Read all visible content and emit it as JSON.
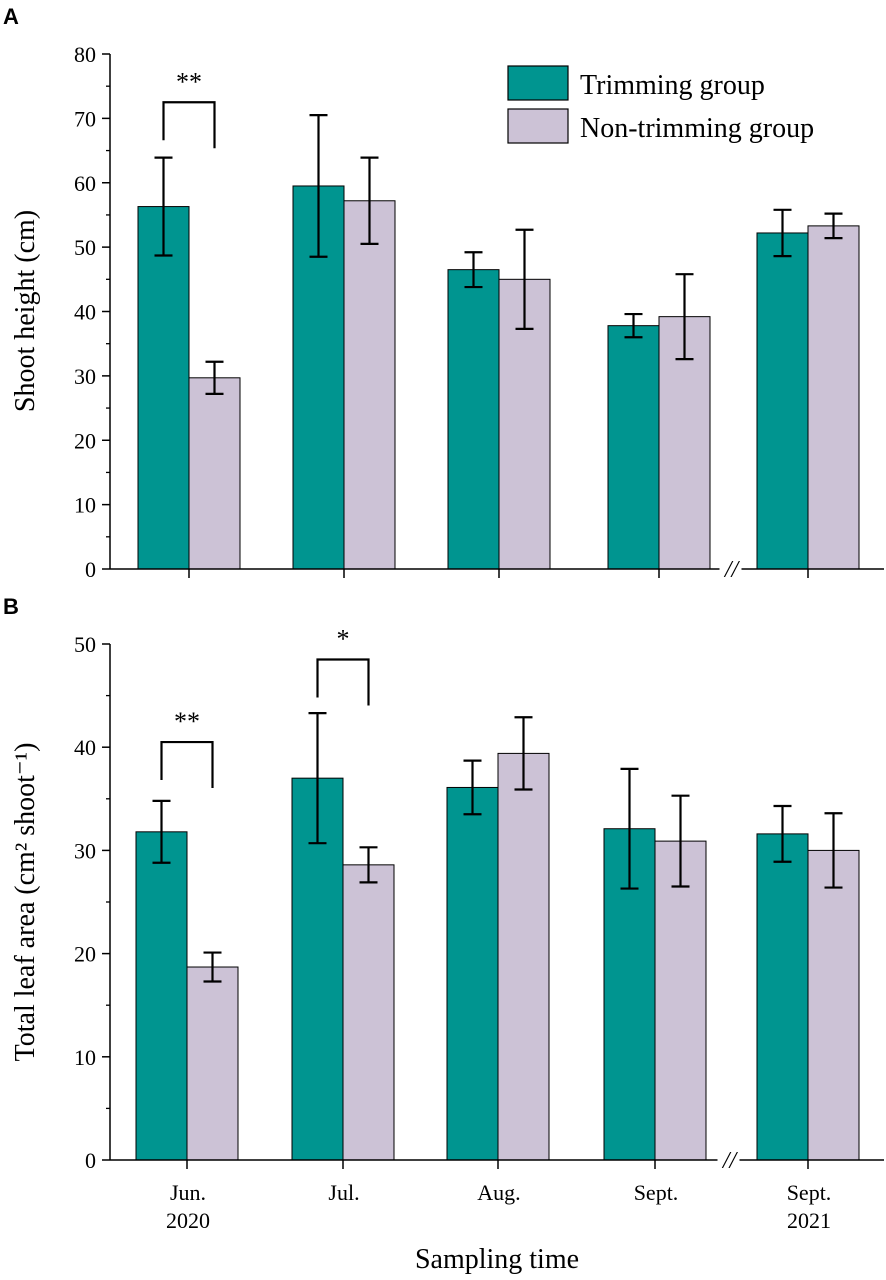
{
  "colors": {
    "trimming": "#009590",
    "non_trimming": "#ccc2d6",
    "stroke": "#000000"
  },
  "categories_top": [
    "Jun. 2020",
    "Jul.",
    "Aug.",
    "Sept.",
    "Sept. 2021"
  ],
  "category_labels": [
    {
      "line1": "Jun.",
      "line2": "2020"
    },
    {
      "line1": "Jul.",
      "line2": ""
    },
    {
      "line1": "Aug.",
      "line2": ""
    },
    {
      "line1": "Sept.",
      "line2": ""
    },
    {
      "line1": "Sept.",
      "line2": "2021"
    }
  ],
  "x_axis_title": "Sampling time",
  "axis_break_mark": "//",
  "chart_data": [
    {
      "panel": "A",
      "type": "bar",
      "ylabel": "Shoot height (cm)",
      "ylim": [
        0,
        80
      ],
      "yticks": [
        0,
        10,
        20,
        30,
        40,
        50,
        60,
        70,
        80
      ],
      "axis_break_between": [
        3,
        4
      ],
      "legend": {
        "position": "top-right",
        "entries": [
          "Trimming group",
          "Non-trimming group"
        ]
      },
      "series": [
        {
          "name": "Trimming group",
          "values": [
            56.3,
            59.5,
            46.5,
            37.8,
            52.2
          ],
          "errors": [
            7.6,
            11.0,
            2.7,
            1.8,
            3.6
          ]
        },
        {
          "name": "Non-trimming group",
          "values": [
            29.7,
            57.2,
            45.0,
            39.2,
            53.3
          ],
          "errors": [
            2.5,
            6.7,
            7.7,
            6.6,
            1.9
          ]
        }
      ],
      "significance": [
        {
          "category": 0,
          "label": "**",
          "y": 72.5
        }
      ]
    },
    {
      "panel": "B",
      "type": "bar",
      "ylabel": "Total leaf area (cm² shoot⁻¹)",
      "ylim": [
        0,
        50
      ],
      "yticks": [
        0,
        10,
        20,
        30,
        40,
        50
      ],
      "axis_break_between": [
        3,
        4
      ],
      "series": [
        {
          "name": "Trimming group",
          "values": [
            31.8,
            37.0,
            36.1,
            32.1,
            31.6
          ],
          "errors": [
            3.0,
            6.3,
            2.6,
            5.8,
            2.7
          ]
        },
        {
          "name": "Non-trimming group",
          "values": [
            18.7,
            28.6,
            39.4,
            30.9,
            30.0
          ],
          "errors": [
            1.4,
            1.7,
            3.5,
            4.4,
            3.6
          ]
        }
      ],
      "significance": [
        {
          "category": 0,
          "label": "**",
          "y": 40.5
        },
        {
          "category": 1,
          "label": "*",
          "y": 48.5
        }
      ]
    }
  ]
}
